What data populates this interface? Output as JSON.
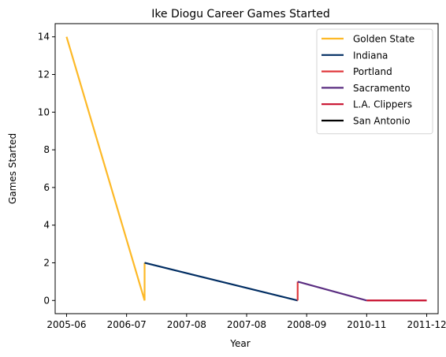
{
  "chart_data": {
    "type": "line",
    "title": "Ike Diogu Career Games Started",
    "xlabel": "Year",
    "ylabel": "Games Started",
    "x_ticks": [
      "2005-06",
      "2006-07",
      "2007-08",
      "2007-08",
      "2008-09",
      "2010-11",
      "2011-12"
    ],
    "x_tick_values": [
      0,
      1,
      2,
      3,
      4,
      5,
      6
    ],
    "xlim": [
      -0.19,
      6.19
    ],
    "ylim": [
      -0.7,
      14.7
    ],
    "y_ticks": [
      0,
      2,
      4,
      6,
      8,
      10,
      12,
      14
    ],
    "grid": false,
    "legend_position": "upper right",
    "series": [
      {
        "name": "Golden State",
        "color": "#FDB927",
        "points": [
          [
            0.0,
            14
          ],
          [
            1.3,
            0
          ],
          [
            1.3,
            2
          ]
        ]
      },
      {
        "name": "Indiana",
        "color": "#002D62",
        "points": [
          [
            1.3,
            2
          ],
          [
            3.85,
            0
          ]
        ]
      },
      {
        "name": "Portland",
        "color": "#E03A3E",
        "points": [
          [
            3.85,
            0
          ],
          [
            3.85,
            1
          ]
        ]
      },
      {
        "name": "Sacramento",
        "color": "#5A2D81",
        "points": [
          [
            3.85,
            1
          ],
          [
            5.0,
            0
          ]
        ]
      },
      {
        "name": "L.A. Clippers",
        "color": "#C8102E",
        "points": [
          [
            5.0,
            0
          ],
          [
            6.0,
            0
          ]
        ]
      },
      {
        "name": "San Antonio",
        "color": "#000000",
        "points": []
      }
    ]
  }
}
